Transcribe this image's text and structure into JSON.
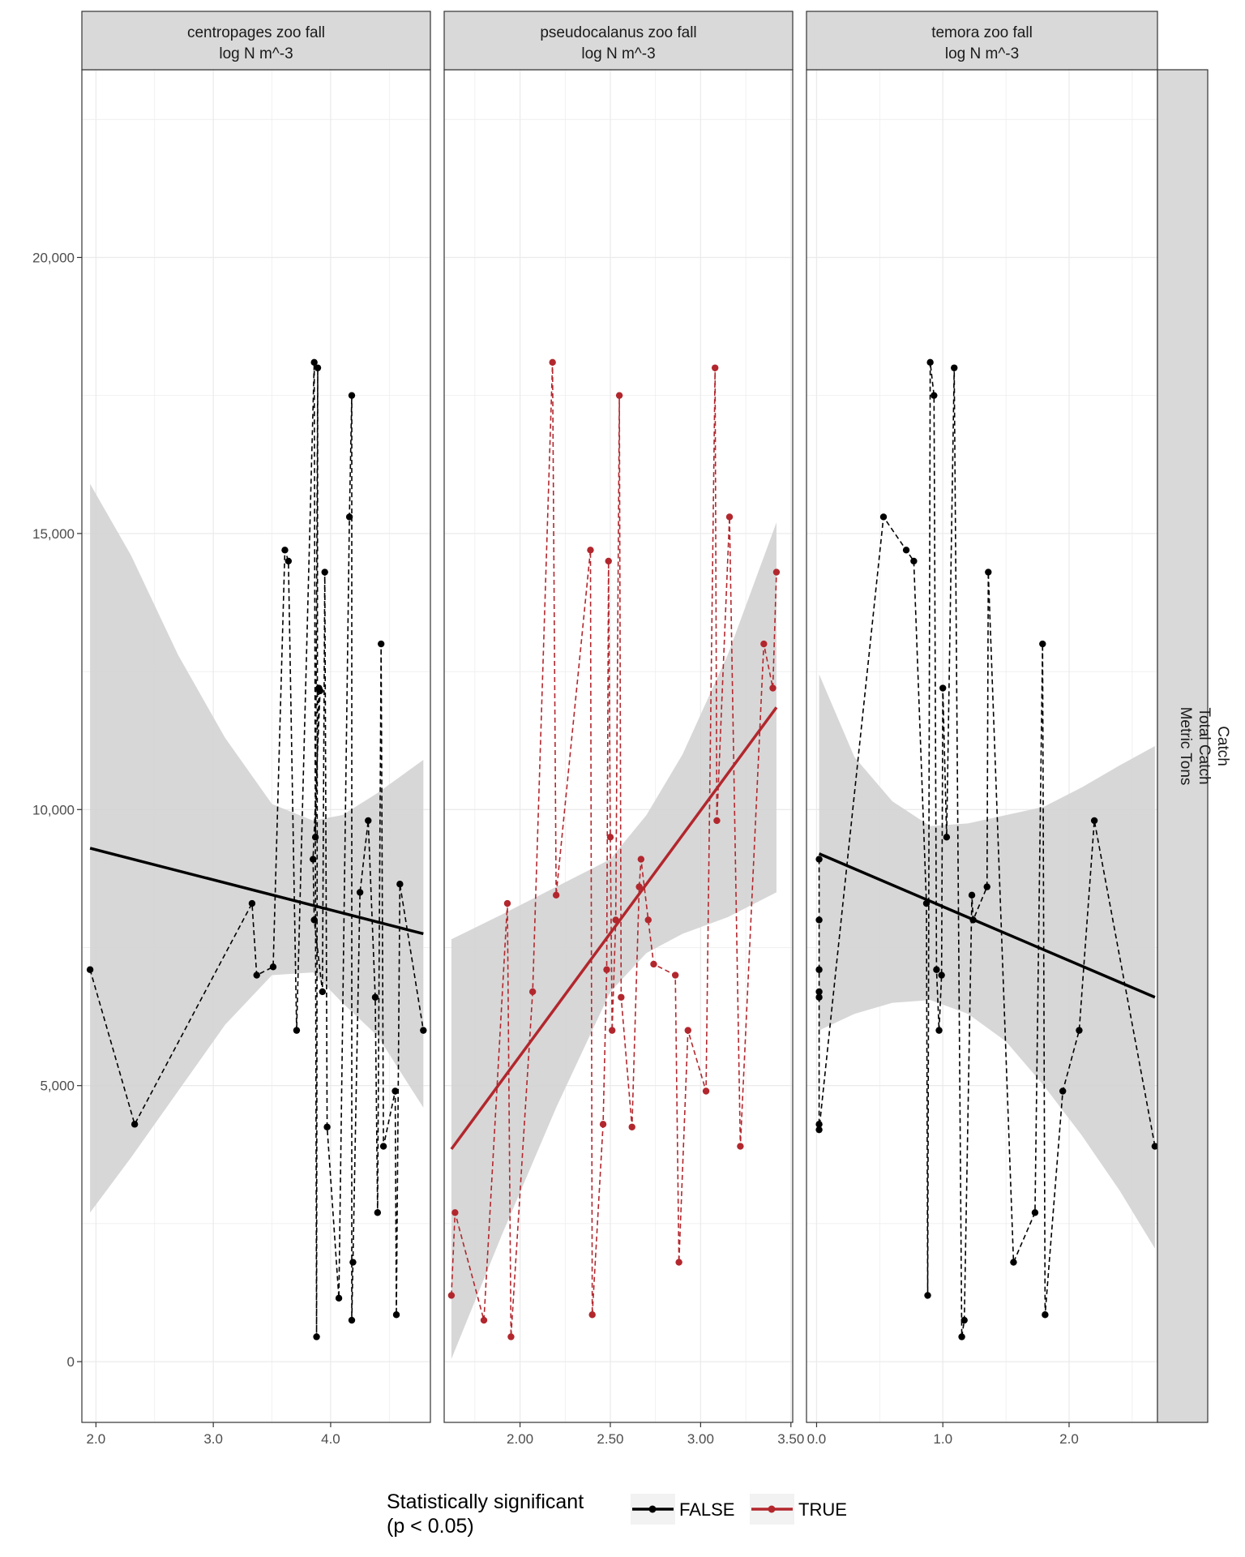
{
  "chart_data": {
    "type": "scatter",
    "y_axis": {
      "lim": [
        -1100,
        23400
      ],
      "ticks": [
        0,
        5000,
        10000,
        15000,
        20000
      ],
      "tick_labels": [
        "0",
        "5,000",
        "10,000",
        "15,000",
        "20,000"
      ]
    },
    "row_strip": {
      "lines": [
        "Catch",
        "Total Catch",
        "Metric Tons"
      ]
    },
    "legend": {
      "title_lines": [
        "Statistically significant",
        "(p < 0.05)"
      ],
      "entries": [
        {
          "label": "FALSE",
          "color": "#000000"
        },
        {
          "label": "TRUE",
          "color": "#b2272d"
        }
      ],
      "position": "bottom"
    },
    "colors": {
      "band": "#d3d3d3",
      "strip_fill": "#d9d9d9",
      "grid": "#ebebeb",
      "panel_border": "#333333"
    },
    "panels": [
      {
        "strip_lines": [
          "centropages zoo fall",
          "log N m^-3"
        ],
        "significant": false,
        "xlim": [
          1.88,
          4.85
        ],
        "x_ticks": [
          2,
          3,
          4
        ],
        "x_tick_labels": [
          "2.0",
          "3.0",
          "4.0"
        ],
        "points": [
          [
            1.95,
            7100
          ],
          [
            2.33,
            4300
          ],
          [
            3.33,
            8300
          ],
          [
            3.37,
            7000
          ],
          [
            3.51,
            7150
          ],
          [
            3.61,
            14700
          ],
          [
            3.64,
            14500
          ],
          [
            3.71,
            6000
          ],
          [
            3.86,
            18100
          ],
          [
            3.88,
            450.0
          ],
          [
            3.89,
            18000
          ],
          [
            3.87,
            9500
          ],
          [
            3.9,
            12200
          ],
          [
            3.91,
            12150
          ],
          [
            3.85,
            9100
          ],
          [
            3.86,
            8000
          ],
          [
            3.93,
            6700
          ],
          [
            3.95,
            14300
          ],
          [
            3.97,
            4250
          ],
          [
            4.07,
            1150
          ],
          [
            4.16,
            15300
          ],
          [
            4.18,
            17500
          ],
          [
            4.18,
            750
          ],
          [
            4.19,
            1800
          ],
          [
            4.25,
            8500
          ],
          [
            4.32,
            9800
          ],
          [
            4.38,
            6600
          ],
          [
            4.4,
            2700
          ],
          [
            4.43,
            13000
          ],
          [
            4.45,
            3900
          ],
          [
            4.55,
            4900
          ],
          [
            4.56,
            850
          ],
          [
            4.59,
            8650
          ],
          [
            4.79,
            6000
          ]
        ],
        "fit": {
          "x": [
            1.95,
            4.79
          ],
          "y": [
            9300,
            7750
          ]
        },
        "band": {
          "x": [
            1.95,
            2.3,
            2.7,
            3.1,
            3.5,
            3.85,
            4.1,
            4.4,
            4.79
          ],
          "lo": [
            2700,
            3700,
            4900,
            6100,
            7000,
            7050,
            6500,
            5900,
            4600
          ],
          "hi": [
            15900,
            14600,
            12800,
            11300,
            10100,
            9800,
            9900,
            10300,
            10900
          ]
        }
      },
      {
        "strip_lines": [
          "pseudocalanus zoo fall",
          "log N m^-3"
        ],
        "significant": true,
        "xlim": [
          1.58,
          3.51
        ],
        "x_ticks": [
          2.0,
          2.5,
          3.0,
          3.5
        ],
        "x_tick_labels": [
          "2.00",
          "2.50",
          "3.00",
          "3.50"
        ],
        "points": [
          [
            1.62,
            1200
          ],
          [
            1.64,
            2700
          ],
          [
            1.8,
            750
          ],
          [
            1.93,
            8300
          ],
          [
            1.95,
            450
          ],
          [
            2.07,
            6700
          ],
          [
            2.18,
            18100
          ],
          [
            2.2,
            8450
          ],
          [
            2.39,
            14700
          ],
          [
            2.4,
            850
          ],
          [
            2.46,
            4300
          ],
          [
            2.48,
            7100
          ],
          [
            2.49,
            14500
          ],
          [
            2.5,
            9500
          ],
          [
            2.51,
            6000
          ],
          [
            2.53,
            8000
          ],
          [
            2.55,
            17500
          ],
          [
            2.56,
            6600
          ],
          [
            2.62,
            4250
          ],
          [
            2.66,
            8600
          ],
          [
            2.67,
            9100
          ],
          [
            2.71,
            8000
          ],
          [
            2.74,
            7200
          ],
          [
            2.86,
            7000
          ],
          [
            2.88,
            1800
          ],
          [
            2.93,
            6000
          ],
          [
            3.03,
            4900
          ],
          [
            3.08,
            18000
          ],
          [
            3.09,
            9800
          ],
          [
            3.16,
            15300
          ],
          [
            3.22,
            3900
          ],
          [
            3.35,
            13000
          ],
          [
            3.4,
            12200
          ],
          [
            3.42,
            14300
          ]
        ],
        "fit": {
          "x": [
            1.62,
            3.42
          ],
          "y": [
            3850,
            11850
          ]
        },
        "band": {
          "x": [
            1.62,
            1.9,
            2.2,
            2.5,
            2.7,
            2.9,
            3.15,
            3.42
          ],
          "lo": [
            50,
            2300,
            4600,
            6700,
            7400,
            7750,
            8050,
            8500
          ],
          "hi": [
            7650,
            8100,
            8600,
            9100,
            9900,
            11000,
            12800,
            15200
          ]
        }
      },
      {
        "strip_lines": [
          "temora zoo fall",
          "log N m^-3"
        ],
        "significant": false,
        "xlim": [
          -0.08,
          2.7
        ],
        "x_ticks": [
          0,
          1,
          2
        ],
        "x_tick_labels": [
          "0.0",
          "1.0",
          "2.0"
        ],
        "points": [
          [
            0.02,
            9100
          ],
          [
            0.02,
            8000
          ],
          [
            0.02,
            7100
          ],
          [
            0.02,
            6700
          ],
          [
            0.02,
            6600
          ],
          [
            0.02,
            4300
          ],
          [
            0.02,
            4200
          ],
          [
            0.53,
            15300
          ],
          [
            0.71,
            14700
          ],
          [
            0.77,
            14500
          ],
          [
            0.87,
            8300
          ],
          [
            0.88,
            1200
          ],
          [
            0.9,
            18100
          ],
          [
            0.93,
            17500
          ],
          [
            0.95,
            7100
          ],
          [
            0.97,
            6000
          ],
          [
            0.99,
            7000
          ],
          [
            1.0,
            12200
          ],
          [
            1.03,
            9500
          ],
          [
            1.09,
            18000
          ],
          [
            1.15,
            450
          ],
          [
            1.17,
            750
          ],
          [
            1.23,
            8450
          ],
          [
            1.24,
            8000
          ],
          [
            1.35,
            8600
          ],
          [
            1.36,
            14300
          ],
          [
            1.56,
            1800
          ],
          [
            1.73,
            2700
          ],
          [
            1.79,
            13000
          ],
          [
            1.81,
            850
          ],
          [
            1.95,
            4900
          ],
          [
            2.08,
            6000
          ],
          [
            2.2,
            9800
          ],
          [
            2.68,
            3900
          ]
        ],
        "fit": {
          "x": [
            0.02,
            2.68
          ],
          "y": [
            9200,
            6600
          ]
        },
        "band": {
          "x": [
            0.02,
            0.3,
            0.6,
            0.9,
            1.2,
            1.5,
            1.8,
            2.1,
            2.4,
            2.68
          ],
          "lo": [
            6000,
            6300,
            6500,
            6550,
            6300,
            5800,
            5000,
            4100,
            3100,
            2050
          ],
          "hi": [
            12450,
            10950,
            10150,
            9700,
            9750,
            9900,
            10050,
            10400,
            10800,
            11150
          ]
        }
      }
    ]
  }
}
